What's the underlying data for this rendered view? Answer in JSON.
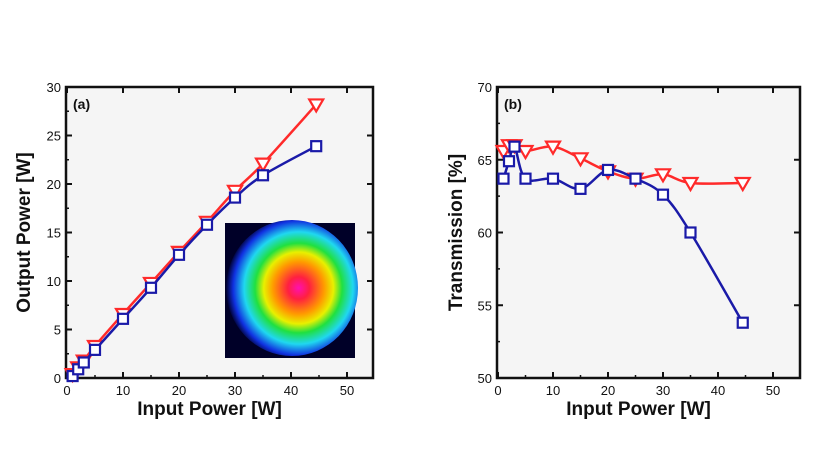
{
  "chart_data": [
    {
      "type": "line",
      "panel_label": "(a)",
      "xlabel": "Input Power [W]",
      "ylabel": "Output Power [W]",
      "xlim": [
        0,
        50
      ],
      "ylim": [
        0,
        30
      ],
      "xticks": [
        0,
        10,
        20,
        30,
        40,
        50
      ],
      "yticks": [
        0,
        5,
        10,
        15,
        20,
        25,
        30
      ],
      "grid": false,
      "inset": "beam profile false-color image",
      "x": [
        1,
        2,
        3,
        5,
        10,
        15,
        20,
        25,
        30,
        35,
        44.5
      ],
      "series": [
        {
          "marker": "triangle-down",
          "color": "#ff2a2a",
          "values": [
            0.4,
            1.1,
            1.8,
            3.3,
            6.6,
            9.8,
            13.0,
            16.1,
            19.3,
            22.1,
            28.2
          ]
        },
        {
          "marker": "square",
          "color": "#1a1aa8",
          "values": [
            0.2,
            0.9,
            1.6,
            2.9,
            6.1,
            9.3,
            12.7,
            15.8,
            18.6,
            20.9,
            23.9
          ]
        }
      ]
    },
    {
      "type": "line",
      "panel_label": "(b)",
      "xlabel": "Input Power [W]",
      "ylabel": "Transmission [%]",
      "xlim": [
        0,
        50
      ],
      "ylim": [
        50,
        70
      ],
      "xticks": [
        0,
        10,
        20,
        30,
        40,
        50
      ],
      "yticks": [
        50,
        55,
        60,
        65,
        70
      ],
      "grid": false,
      "x": [
        1,
        2,
        3,
        5,
        10,
        15,
        20,
        25,
        30,
        35,
        44.5
      ],
      "series": [
        {
          "marker": "triangle-down",
          "color": "#ff2a2a",
          "values": [
            65.6,
            66.0,
            66.0,
            65.6,
            65.9,
            65.1,
            64.2,
            63.7,
            64.0,
            63.4,
            63.4
          ]
        },
        {
          "marker": "square",
          "color": "#1a1aa8",
          "values": [
            63.7,
            64.9,
            65.9,
            63.7,
            63.7,
            63.0,
            64.3,
            63.7,
            62.6,
            60.0,
            53.8
          ]
        }
      ]
    }
  ]
}
